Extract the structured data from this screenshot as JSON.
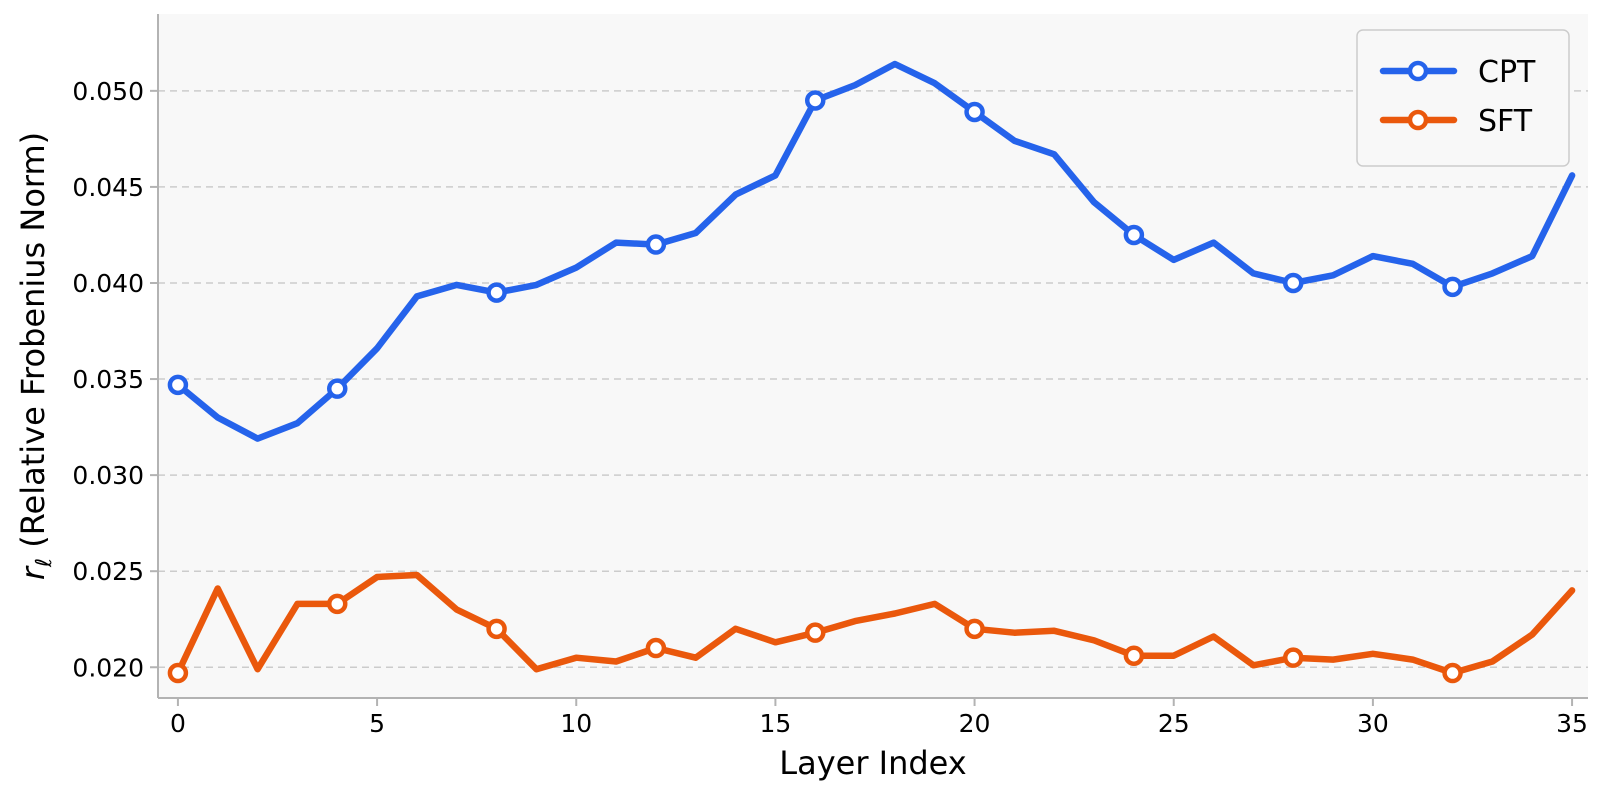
{
  "chart_data": {
    "type": "line",
    "xlabel": "Layer Index",
    "ylabel_symbol": "r",
    "ylabel_subscript": "ℓ",
    "ylabel_text": " (Relative Frobenius Norm)",
    "xlim": [
      -0.5,
      35.4
    ],
    "ylim": [
      0.0184,
      0.054
    ],
    "xticks": [
      0,
      5,
      10,
      15,
      20,
      25,
      30,
      35
    ],
    "yticks": [
      0.02,
      0.025,
      0.03,
      0.035,
      0.04,
      0.045,
      0.05
    ],
    "ytick_labels": [
      "0.020",
      "0.025",
      "0.030",
      "0.035",
      "0.040",
      "0.045",
      "0.050"
    ],
    "grid": "y-dashed",
    "legend_position": "top-right",
    "marker_every": 4,
    "x": [
      0,
      1,
      2,
      3,
      4,
      5,
      6,
      7,
      8,
      9,
      10,
      11,
      12,
      13,
      14,
      15,
      16,
      17,
      18,
      19,
      20,
      21,
      22,
      23,
      24,
      25,
      26,
      27,
      28,
      29,
      30,
      31,
      32,
      33,
      34,
      35
    ],
    "series": [
      {
        "name": "CPT",
        "color": "#2563eb",
        "values": [
          0.0347,
          0.033,
          0.0319,
          0.0327,
          0.0345,
          0.0366,
          0.0393,
          0.0399,
          0.0395,
          0.0399,
          0.0408,
          0.0421,
          0.042,
          0.0426,
          0.0446,
          0.0456,
          0.0495,
          0.0503,
          0.0514,
          0.0504,
          0.0489,
          0.0474,
          0.0467,
          0.0442,
          0.0425,
          0.0412,
          0.0421,
          0.0405,
          0.04,
          0.0404,
          0.0414,
          0.041,
          0.0398,
          0.0405,
          0.0414,
          0.0456
        ]
      },
      {
        "name": "SFT",
        "color": "#ea580c",
        "values": [
          0.0197,
          0.0241,
          0.0199,
          0.0233,
          0.0233,
          0.0247,
          0.0248,
          0.023,
          0.022,
          0.0199,
          0.0205,
          0.0203,
          0.021,
          0.0205,
          0.022,
          0.0213,
          0.0218,
          0.0224,
          0.0228,
          0.0233,
          0.022,
          0.0218,
          0.0219,
          0.0214,
          0.0206,
          0.0206,
          0.0216,
          0.0201,
          0.0205,
          0.0204,
          0.0207,
          0.0204,
          0.0197,
          0.0203,
          0.0217,
          0.024
        ]
      }
    ]
  }
}
